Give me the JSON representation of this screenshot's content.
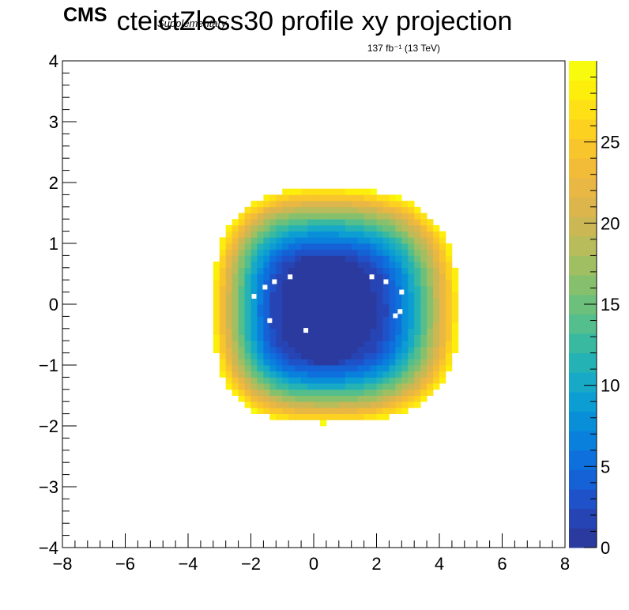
{
  "chart_data": {
    "type": "heatmap",
    "title": "cteictZless30 profile xy projection",
    "cms_label": "CMS",
    "cms_sublabel": "Supplementary",
    "lumi_label": "137 fb⁻¹ (13 TeV)",
    "xlabel": "",
    "ylabel": "",
    "xlim": [
      -8,
      8
    ],
    "ylim": [
      -4,
      4
    ],
    "x_ticks": [
      "−8",
      "−6",
      "−4",
      "−2",
      "0",
      "2",
      "4",
      "6",
      "8"
    ],
    "x_tick_values": [
      -8,
      -6,
      -4,
      -2,
      0,
      2,
      4,
      6,
      8
    ],
    "y_ticks": [
      "−4",
      "−3",
      "−2",
      "−1",
      "0",
      "1",
      "2",
      "3",
      "4"
    ],
    "y_tick_values": [
      -4,
      -3,
      -2,
      -1,
      0,
      1,
      2,
      3,
      4
    ],
    "z_range": [
      0,
      30
    ],
    "z_ticks": [
      "0",
      "5",
      "10",
      "15",
      "20",
      "25"
    ],
    "z_tick_values": [
      0,
      5,
      10,
      15,
      20,
      25
    ],
    "palette": [
      "#2a3a9e",
      "#2744b4",
      "#1f52c8",
      "#1561d6",
      "#0e70dc",
      "#0a80dd",
      "#088fd8",
      "#0c9dd2",
      "#17a9c6",
      "#24b2b5",
      "#3ab9a1",
      "#54be8c",
      "#6dc07b",
      "#87c06d",
      "#a0bf62",
      "#b8bc5a",
      "#cbb753",
      "#dcb64c",
      "#e9b743",
      "#f3bc38",
      "#f9c52c",
      "#fcd11f",
      "#fde015",
      "#fdee0c",
      "#f9fb0e"
    ],
    "bin_size": [
      0.2,
      0.1
    ],
    "distribution": {
      "center": [
        0.3,
        -0.1
      ],
      "outer_x_half_width": [
        4.3,
        3.5
      ],
      "outer_y_half_height": [
        2.0,
        1.85
      ],
      "core_half_axes": [
        1.6,
        0.9
      ],
      "max_value": 29
    },
    "empty_bins": [
      [
        -1.9,
        0.13
      ],
      [
        -1.55,
        0.28
      ],
      [
        -1.25,
        0.37
      ],
      [
        -0.75,
        0.45
      ],
      [
        -1.4,
        -0.27
      ],
      [
        -0.25,
        -0.43
      ],
      [
        1.85,
        0.45
      ],
      [
        2.3,
        0.37
      ],
      [
        2.8,
        0.2
      ],
      [
        2.75,
        -0.12
      ],
      [
        2.6,
        -0.19
      ]
    ]
  }
}
